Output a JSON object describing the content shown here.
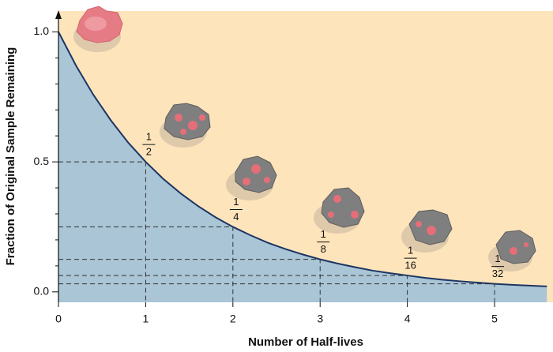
{
  "chart_data": {
    "type": "area",
    "x_label": "Number of Half-lives",
    "y_label": "Fraction of Original Sample Remaining",
    "x": [
      0,
      0.2,
      0.4,
      0.6,
      0.8,
      1,
      1.2,
      1.4,
      1.6,
      1.8,
      2,
      2.2,
      2.4,
      2.6,
      2.8,
      3,
      3.2,
      3.4,
      3.6,
      3.8,
      4,
      4.2,
      4.4,
      4.6,
      4.8,
      5,
      5.2,
      5.4,
      5.6
    ],
    "values": [
      1,
      0.871,
      0.758,
      0.66,
      0.574,
      0.5,
      0.435,
      0.379,
      0.33,
      0.287,
      0.25,
      0.218,
      0.189,
      0.165,
      0.144,
      0.125,
      0.109,
      0.095,
      0.082,
      0.072,
      0.063,
      0.054,
      0.047,
      0.041,
      0.036,
      0.031,
      0.027,
      0.024,
      0.021
    ],
    "color": "#1d3564",
    "fill_color": "#a9c5d6",
    "background_color": "#fde4bb",
    "half_lives": {
      "x": [
        1,
        2,
        3,
        4,
        5
      ],
      "y": [
        0.5,
        0.25,
        0.125,
        0.063,
        0.031
      ],
      "labels": [
        {
          "numerator": "1",
          "denominator": "2"
        },
        {
          "numerator": "1",
          "denominator": "4"
        },
        {
          "numerator": "1",
          "denominator": "8"
        },
        {
          "numerator": "1",
          "denominator": "16"
        },
        {
          "numerator": "1",
          "denominator": "32"
        }
      ]
    },
    "xlim": [
      0,
      5.67
    ],
    "ylim": [
      -0.04,
      1.08
    ],
    "xticks": [
      0,
      1,
      2,
      3,
      4,
      5
    ],
    "yticks": [
      {
        "value": 0,
        "label": "0.0"
      },
      {
        "value": 0.5,
        "label": "0.5"
      },
      {
        "value": 1,
        "label": "1.0"
      }
    ],
    "yminorticks": [
      0.1,
      0.2,
      0.3,
      0.4,
      0.6,
      0.7,
      0.8,
      0.9
    ]
  }
}
